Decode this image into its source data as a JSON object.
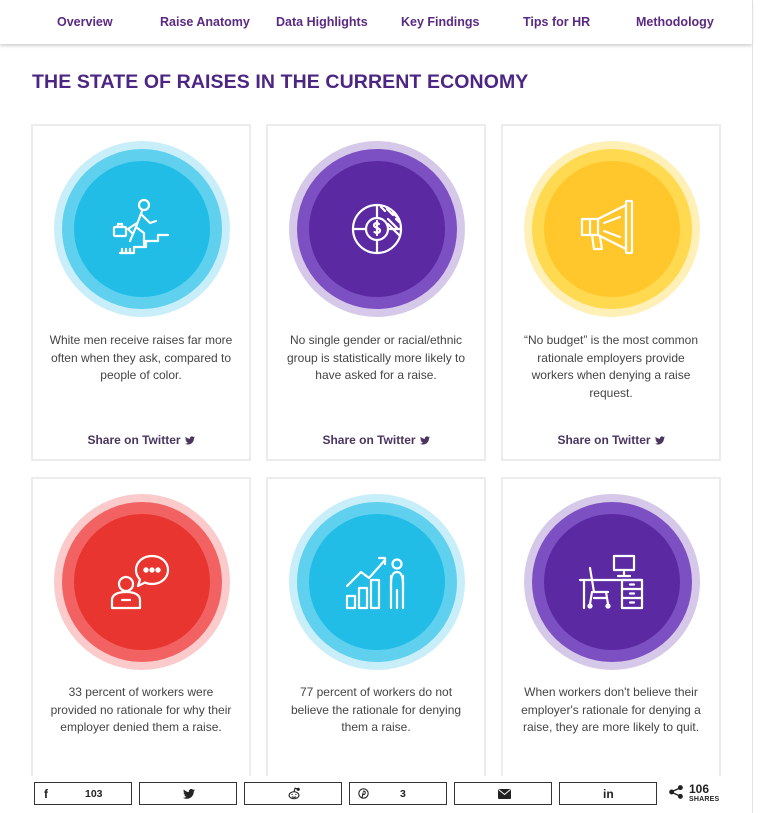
{
  "nav": {
    "items": [
      "Overview",
      "Raise Anatomy",
      "Data Highlights",
      "Key Findings",
      "Tips for HR",
      "Methodology"
    ]
  },
  "page_title": "THE STATE OF RAISES IN THE CURRENT ECONOMY",
  "colors": {
    "accent_purple": "#5b2aa3",
    "blue": "#22bde7",
    "yellow": "#ffc72c",
    "red": "#e8352f"
  },
  "cards": [
    {
      "theme": "blue",
      "icon": "climbing-stairs-icon",
      "text": "White men receive raises far more often when they ask, compared to people of color.",
      "share_label": "Share on Twitter"
    },
    {
      "theme": "purple",
      "icon": "dollar-pie-chart-icon",
      "text": "No single gender or racial/ethnic group is statistically more likely to have asked for a raise.",
      "share_label": "Share on Twitter"
    },
    {
      "theme": "yellow",
      "icon": "megaphone-icon",
      "text": "“No budget” is the most common rationale employers provide workers when denying a raise request.",
      "share_label": "Share on Twitter"
    },
    {
      "theme": "red",
      "icon": "person-speech-bubble-icon",
      "text": "33 percent of workers were provided no rationale for why their employer denied them a raise.",
      "share_label": ""
    },
    {
      "theme": "blue",
      "icon": "growth-chart-person-icon",
      "text": "77 percent of workers do not believe the rationale for denying them a raise.",
      "share_label": ""
    },
    {
      "theme": "purple",
      "icon": "office-desk-icon",
      "text": "When workers don't believe their employer's rationale for denying a raise, they are more likely to quit.",
      "share_label": ""
    }
  ],
  "sharebar": {
    "facebook_icon": "f",
    "facebook_count": "103",
    "twitter_icon": "twitter-icon",
    "reddit_icon": "reddit-icon",
    "pinterest_icon": "pinterest-icon",
    "pinterest_count": "3",
    "email_icon": "email-icon",
    "linkedin_icon": "in",
    "total_count": "106",
    "total_label": "SHARES"
  }
}
